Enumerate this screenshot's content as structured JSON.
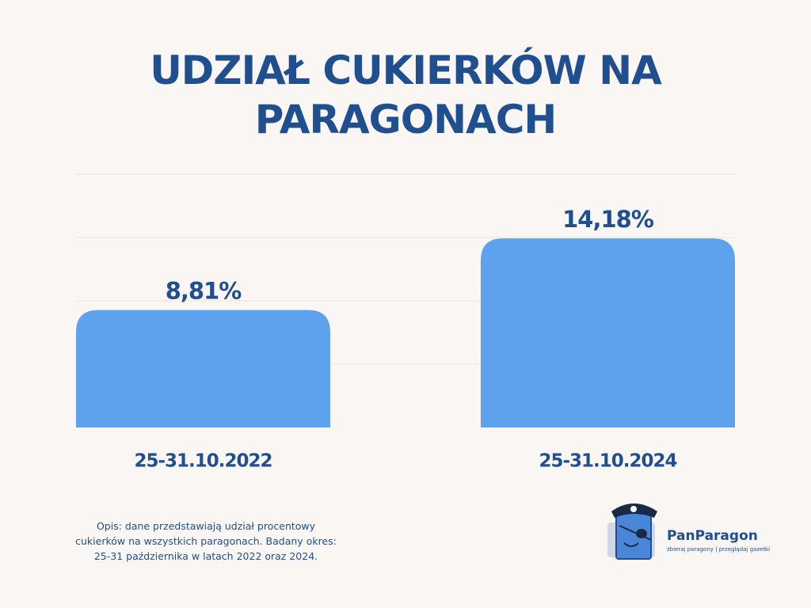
{
  "chart_data": {
    "type": "bar",
    "title": "UDZIAŁ CUKIERKÓW NA PARAGONACH",
    "categories": [
      "25-31.10.2022",
      "25-31.10.2024"
    ],
    "values": [
      8.81,
      14.18
    ],
    "value_labels": [
      "8,81%",
      "14,18%"
    ],
    "color": "#5ea1ec",
    "ylim": [
      0,
      19
    ],
    "yticks": [
      4.75,
      9.5,
      14.25,
      19
    ],
    "grid": true,
    "note": "Opis: dane przedstawiają udział procentowy cukierków na wszystkich paragonach. Badany okres: 25-31 października w latach 2022 oraz 2024."
  },
  "logo": {
    "name": "PanParagon",
    "tagline": "zbieraj paragony | przeglądaj gazetki"
  }
}
